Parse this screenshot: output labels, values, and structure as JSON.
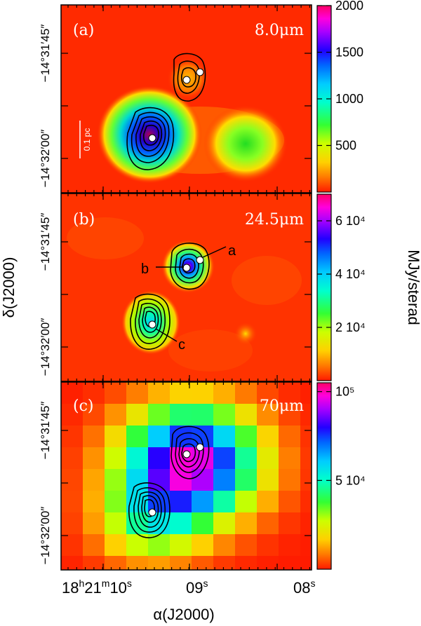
{
  "chart_data": {
    "type": "heatmap",
    "xlabel": "α(J2000)",
    "ylabel": "δ(J2000)",
    "colorbar_label": "MJy/sterad",
    "x_tick_labels": [
      "18h21m10s",
      "09s",
      "08s"
    ],
    "x_tick_parts": {
      "h": "18",
      "h_unit": "h",
      "m": "21",
      "m_unit": "m",
      "s": "10",
      "s_unit": "s",
      "sec09": "09",
      "sec08": "08"
    },
    "y_tick_labels": [
      "−14°31′45″",
      "−14°32′00″"
    ],
    "y_tick_parts": {
      "minus": "−",
      "deg": "14°",
      "min_a": "31′",
      "min_b": "32′",
      "sec_a": "45″",
      "sec_b": "00″"
    },
    "panels": [
      {
        "label": "(a)",
        "wavelength": "8.0μm",
        "colorbar_ticks": [
          "500",
          "1000",
          "1500",
          "2000"
        ],
        "colorbar_range": [
          0,
          2000
        ],
        "scale_bar": "0.1 pc"
      },
      {
        "label": "(b)",
        "wavelength": "24.5μm",
        "colorbar_ticks": [
          "2 10⁴",
          "4 10⁴",
          "6 10⁴"
        ],
        "colorbar_range": [
          0,
          70000
        ],
        "annotations": [
          "a",
          "b",
          "c"
        ]
      },
      {
        "label": "(c)",
        "wavelength": "70μm",
        "colorbar_ticks": [
          "5 10⁴",
          "10⁵"
        ],
        "colorbar_range": [
          0,
          105000
        ]
      }
    ],
    "sources": [
      {
        "name": "a",
        "note": "white dot, upper-right source"
      },
      {
        "name": "b",
        "note": "white dot, upper source peak"
      },
      {
        "name": "c",
        "note": "white dot, lower-left source"
      }
    ]
  },
  "colors": {
    "background_red": "#ff2a00",
    "frame": "#000000",
    "marker": "#ffffff"
  }
}
